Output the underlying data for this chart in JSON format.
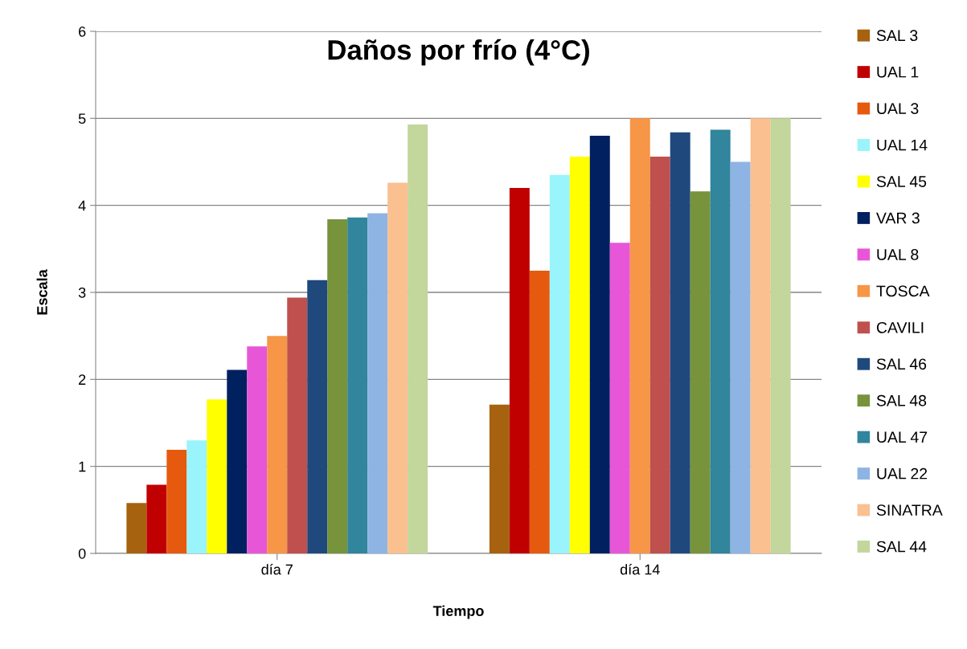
{
  "chart_data": {
    "type": "bar",
    "title": "Daños por frío (4°C)",
    "xlabel": "Tiempo",
    "ylabel": "Escala",
    "categories": [
      "día 7",
      "día 14"
    ],
    "series": [
      {
        "name": "SAL 3",
        "color": "#a6620e",
        "values": [
          0.58,
          1.71
        ]
      },
      {
        "name": "UAL 1",
        "color": "#c00000",
        "values": [
          0.79,
          4.2
        ]
      },
      {
        "name": "UAL 3",
        "color": "#e55a0e",
        "values": [
          1.19,
          3.25
        ]
      },
      {
        "name": "UAL 14",
        "color": "#99f4fb",
        "values": [
          1.3,
          4.35
        ]
      },
      {
        "name": "SAL 45",
        "color": "#ffff00",
        "values": [
          1.77,
          4.56
        ]
      },
      {
        "name": "VAR 3",
        "color": "#002060",
        "values": [
          2.11,
          4.8
        ]
      },
      {
        "name": "UAL 8",
        "color": "#e856d8",
        "values": [
          2.38,
          3.57
        ]
      },
      {
        "name": "TOSCA",
        "color": "#f79646",
        "values": [
          2.5,
          5.0
        ]
      },
      {
        "name": "CAVILI",
        "color": "#c0504d",
        "values": [
          2.94,
          4.56
        ]
      },
      {
        "name": "SAL 46",
        "color": "#1f497d",
        "values": [
          3.14,
          4.84
        ]
      },
      {
        "name": "SAL 48",
        "color": "#77933c",
        "values": [
          3.84,
          4.16
        ]
      },
      {
        "name": "UAL 47",
        "color": "#31859c",
        "values": [
          3.86,
          4.87
        ]
      },
      {
        "name": "UAL 22",
        "color": "#8eb4e3",
        "values": [
          3.91,
          4.5
        ]
      },
      {
        "name": "SINATRA",
        "color": "#fac090",
        "values": [
          4.26,
          5.0
        ]
      },
      {
        "name": "SAL 44",
        "color": "#c3d69b",
        "values": [
          4.93,
          5.0
        ]
      }
    ],
    "ylim": [
      0,
      6
    ],
    "yticks": [
      0,
      1,
      2,
      3,
      4,
      5,
      6
    ],
    "grid": "y",
    "legend": "right"
  }
}
